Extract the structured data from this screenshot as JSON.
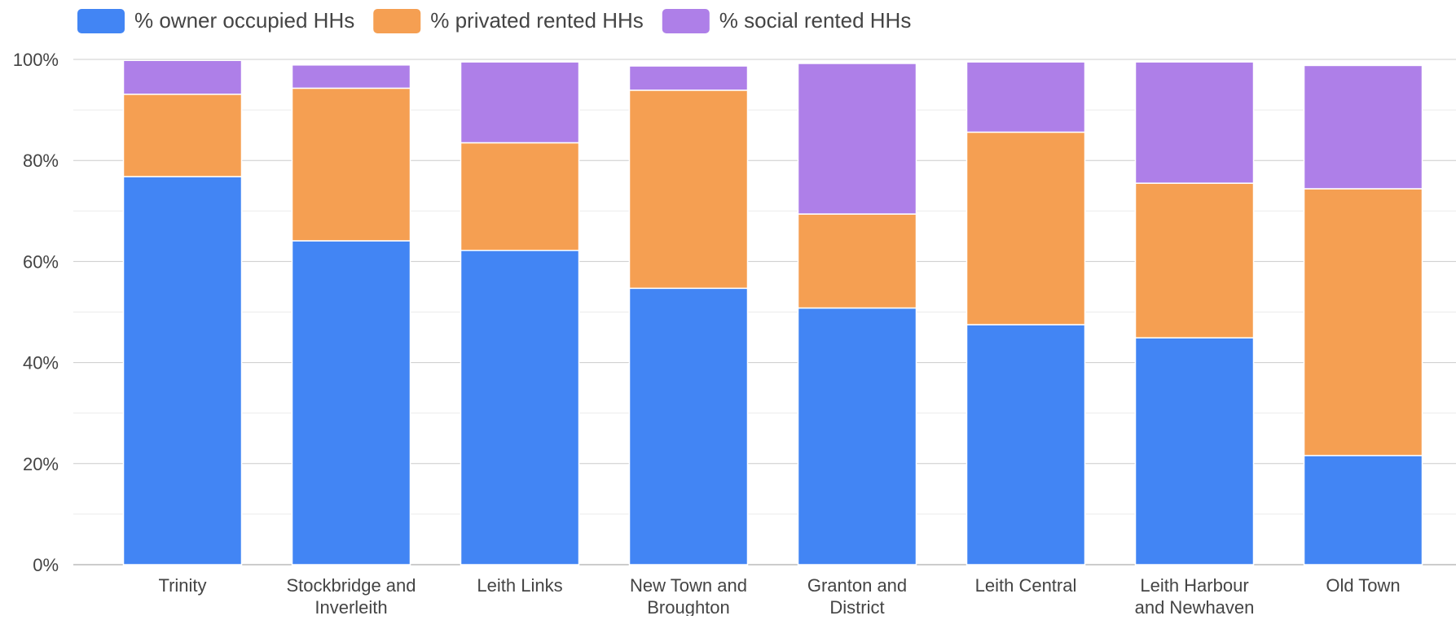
{
  "chart_data": {
    "type": "bar",
    "stacked": true,
    "categories": [
      [
        "Trinity"
      ],
      [
        "Stockbridge and",
        "Inverleith"
      ],
      [
        "Leith Links"
      ],
      [
        "New Town and",
        "Broughton"
      ],
      [
        "Granton and",
        "District"
      ],
      [
        "Leith Central"
      ],
      [
        "Leith Harbour",
        "and Newhaven"
      ],
      [
        "Old Town"
      ]
    ],
    "series": [
      {
        "name": "% owner occupied HHs",
        "color": "#4285F4",
        "values": [
          76.8,
          64.1,
          62.2,
          54.7,
          50.8,
          47.5,
          44.9,
          21.6
        ]
      },
      {
        "name": "% privated rented HHs",
        "color": "#F59F52",
        "values": [
          16.3,
          30.2,
          21.3,
          39.2,
          18.6,
          38.1,
          30.6,
          52.8
        ]
      },
      {
        "name": "% social rented HHs",
        "color": "#AE7FE8",
        "values": [
          6.7,
          4.6,
          16.0,
          4.8,
          29.8,
          13.9,
          24.0,
          24.4
        ]
      }
    ],
    "ylim": [
      0,
      100
    ],
    "yticks": [
      0,
      20,
      40,
      60,
      80,
      100
    ],
    "ytick_labels": [
      "0%",
      "20%",
      "40%",
      "60%",
      "80%",
      "100%"
    ],
    "grid": true,
    "legend_position": "top-left"
  }
}
